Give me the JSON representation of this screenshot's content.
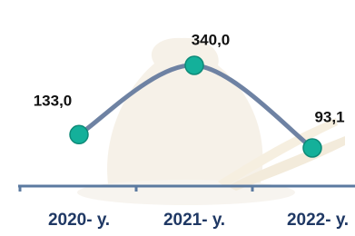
{
  "chart_data": {
    "type": "line",
    "categories": [
      "2020- у.",
      "2021- у.",
      "2022- у."
    ],
    "values": [
      133.0,
      340.0,
      93.1
    ],
    "value_labels": [
      "133,0",
      "340,0",
      "93,1"
    ],
    "color": "#6e82a3",
    "marker_color": "#14b09a"
  }
}
